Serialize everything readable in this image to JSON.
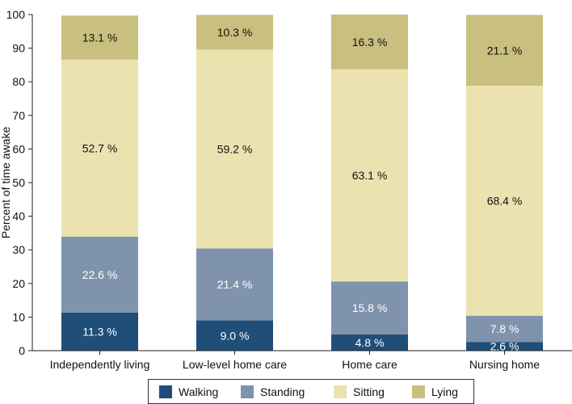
{
  "chart_data": {
    "type": "bar",
    "stacked": true,
    "title": "",
    "xlabel": "",
    "ylabel": "Percent of time awake",
    "ylim": [
      0,
      100
    ],
    "yticks": [
      0,
      10,
      20,
      30,
      40,
      50,
      60,
      70,
      80,
      90,
      100
    ],
    "grid": false,
    "legend_position": "bottom",
    "categories": [
      "Independently living",
      "Low-level home care",
      "Home care",
      "Nursing home"
    ],
    "series": [
      {
        "name": "Walking",
        "color": "#1f4e79",
        "label_color": "#ffffff",
        "values": [
          11.3,
          9.0,
          4.8,
          2.6
        ],
        "labels": [
          "11.3 %",
          "9.0 %",
          "4.8 %",
          "2.6 %"
        ]
      },
      {
        "name": "Standing",
        "color": "#7f93ad",
        "label_color": "#ffffff",
        "values": [
          22.6,
          21.4,
          15.8,
          7.8
        ],
        "labels": [
          "22.6 %",
          "21.4 %",
          "15.8 %",
          "7.8 %"
        ]
      },
      {
        "name": "Sitting",
        "color": "#ebe2b0",
        "label_color": "#111111",
        "values": [
          52.7,
          59.2,
          63.1,
          68.4
        ],
        "labels": [
          "52.7 %",
          "59.2 %",
          "63.1 %",
          "68.4 %"
        ]
      },
      {
        "name": "Lying",
        "color": "#c9bf7e",
        "label_color": "#111111",
        "values": [
          13.1,
          10.3,
          16.3,
          21.1
        ],
        "labels": [
          "13.1 %",
          "10.3 %",
          "16.3 %",
          "21.1 %"
        ]
      }
    ]
  }
}
